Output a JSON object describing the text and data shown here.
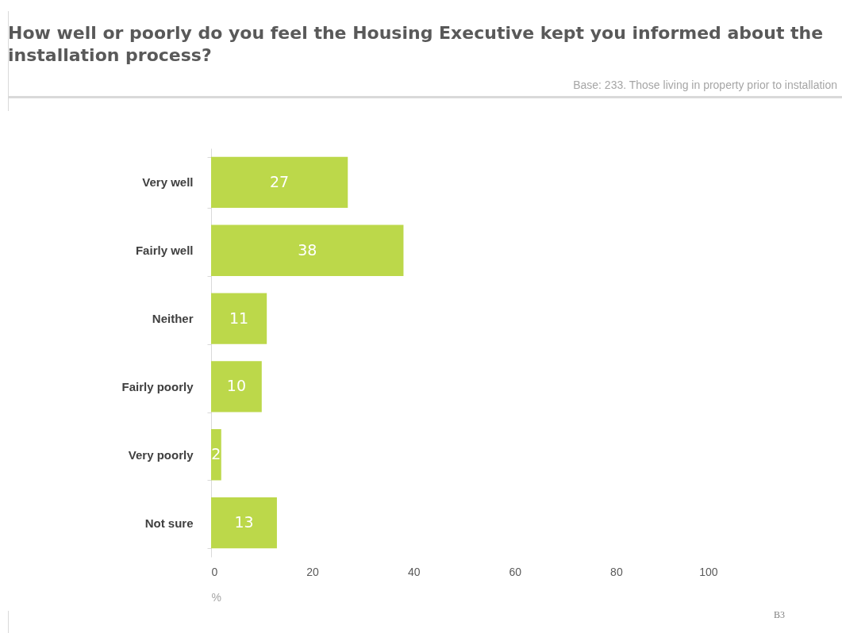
{
  "chart_data": {
    "type": "bar",
    "orientation": "horizontal",
    "title": "How well or poorly do you feel the Housing Executive kept you informed about the installation process?",
    "subtitle": "Base: 233. Those living in property prior to installation",
    "xlabel": "%",
    "annotations": [
      "B3"
    ],
    "categories": [
      "Very well",
      "Fairly well",
      "Neither",
      "Fairly poorly",
      "Very poorly",
      "Not sure"
    ],
    "values": [
      27,
      38,
      11,
      10,
      2,
      13
    ],
    "color": "#bcd84a",
    "xlim": [
      0,
      100
    ],
    "xticks": [
      0,
      20,
      40,
      60,
      80,
      100
    ],
    "data_labels": true,
    "grid": false
  }
}
